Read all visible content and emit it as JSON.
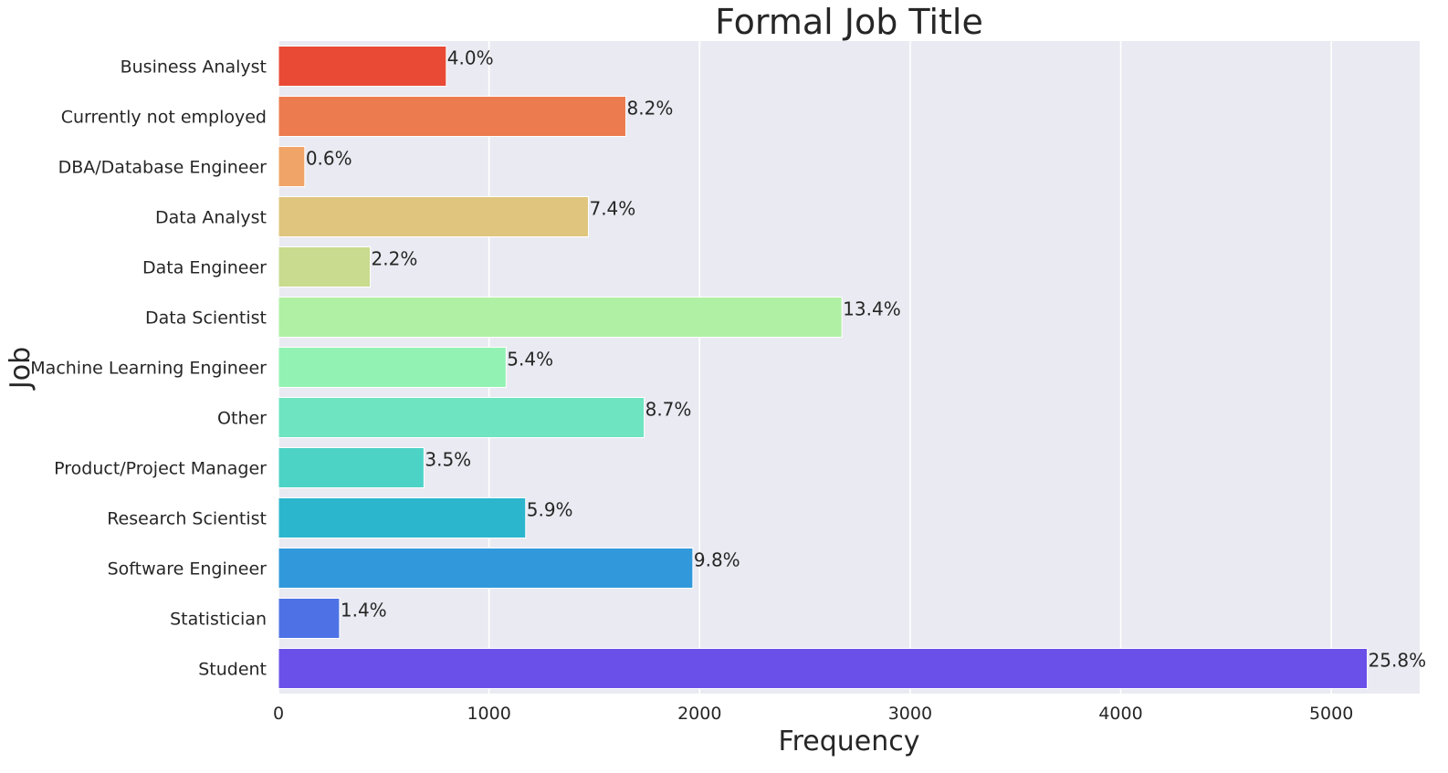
{
  "chart_data": {
    "type": "bar",
    "orientation": "horizontal",
    "title": "Formal Job Title",
    "xlabel": "Frequency",
    "ylabel": "Job",
    "xlim": [
      0,
      5420
    ],
    "xticks": [
      0,
      1000,
      2000,
      3000,
      4000,
      5000
    ],
    "grid": true,
    "categories": [
      "Business Analyst",
      "Currently not employed",
      "DBA/Database Engineer",
      "Data Analyst",
      "Data Engineer",
      "Data Scientist",
      "Machine Learning Engineer",
      "Other",
      "Product/Project Manager",
      "Research Scientist",
      "Software Engineer",
      "Statistician",
      "Student"
    ],
    "values": [
      797,
      1650,
      125,
      1472,
      436,
      2676,
      1081,
      1737,
      691,
      1174,
      1968,
      290,
      5171
    ],
    "data_labels": [
      "4.0%",
      "8.2%",
      "0.6%",
      "7.4%",
      "2.2%",
      "13.4%",
      "5.4%",
      "8.7%",
      "3.5%",
      "5.9%",
      "9.8%",
      "1.4%",
      "25.8%"
    ],
    "colors": [
      "#e84a36",
      "#ec7c50",
      "#f0a468",
      "#dfc57e",
      "#c8db8e",
      "#b0f0a5",
      "#92f2b3",
      "#6ee4c0",
      "#4dd2c6",
      "#2cb6cd",
      "#3199db",
      "#4e72e6",
      "#6a50e8"
    ],
    "background": "#eaeaf2"
  }
}
